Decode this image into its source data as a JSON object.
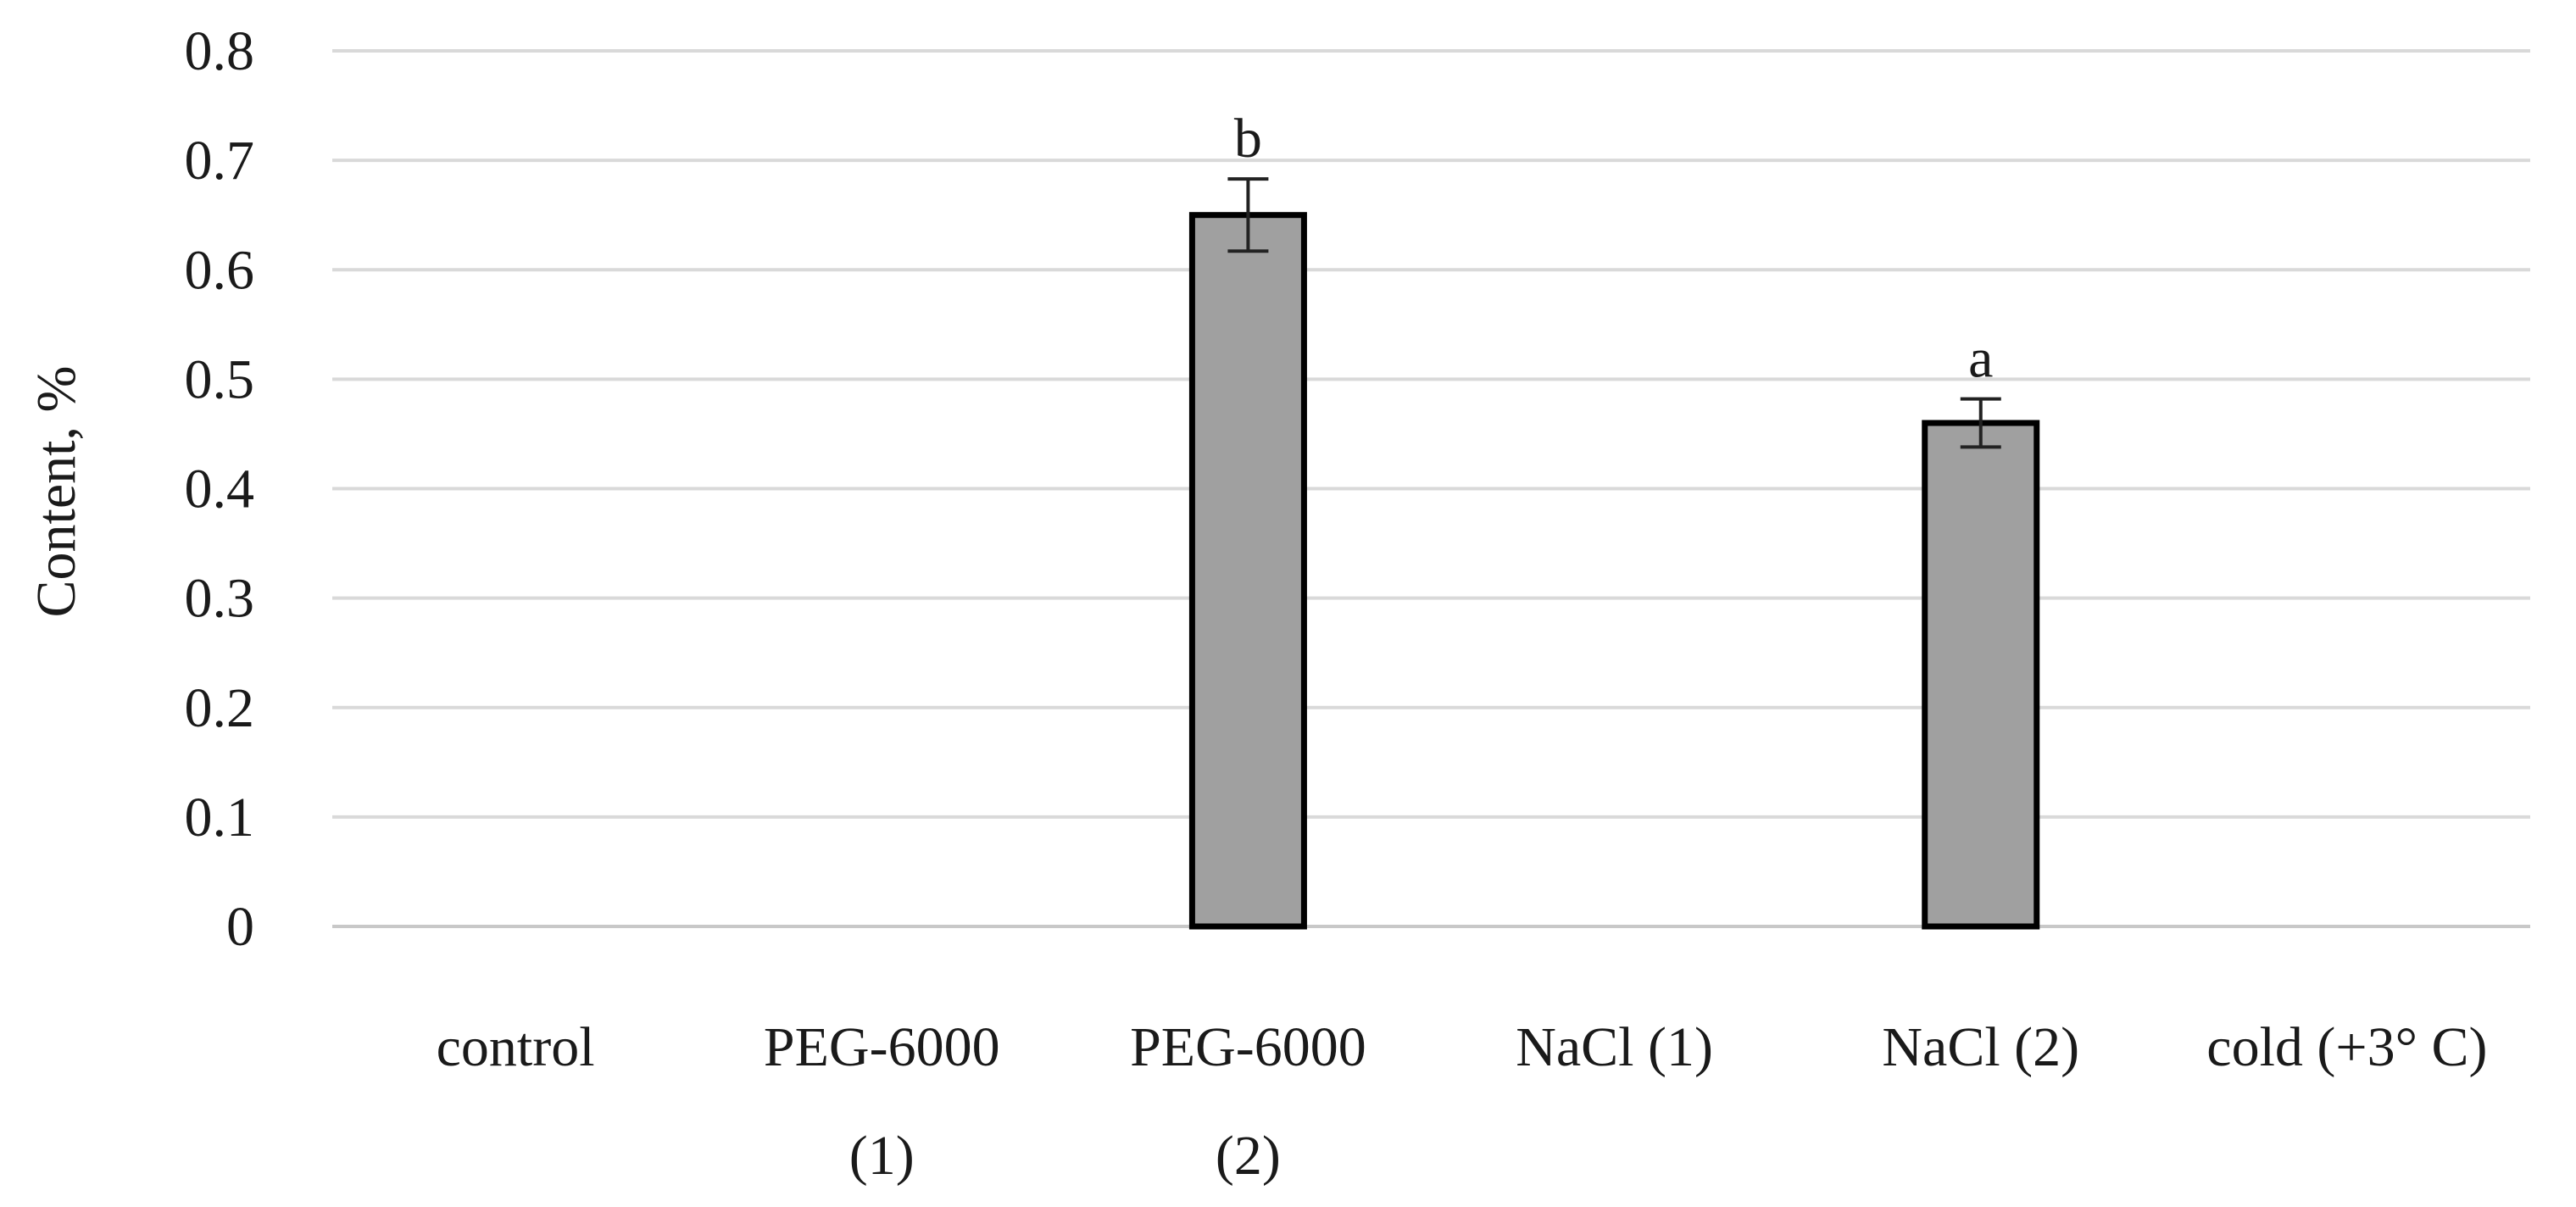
{
  "chart_data": {
    "type": "bar",
    "ylabel": "Content, %",
    "xlabel": "",
    "ylim": [
      0,
      0.8
    ],
    "yticks": [
      "0",
      "0.1",
      "0.2",
      "0.3",
      "0.4",
      "0.5",
      "0.6",
      "0.7",
      "0.8"
    ],
    "grid": true,
    "categories": [
      [
        "control"
      ],
      [
        "PEG-6000",
        "(1)"
      ],
      [
        "PEG-6000",
        "(2)"
      ],
      [
        "NaCl (1)"
      ],
      [
        "NaCl (2)"
      ],
      [
        "cold (+3° C)"
      ]
    ],
    "values": [
      0,
      0,
      0.65,
      0,
      0.46,
      0
    ],
    "errors": [
      0,
      0,
      0.033,
      0,
      0.022,
      0
    ],
    "labels": [
      "",
      "",
      "b",
      "",
      "a",
      ""
    ],
    "colors": {
      "bar_fill": "#a0a0a0",
      "bar_stroke": "#000000",
      "grid": "#d9d9d9",
      "axis": "#c8c8c8"
    }
  }
}
